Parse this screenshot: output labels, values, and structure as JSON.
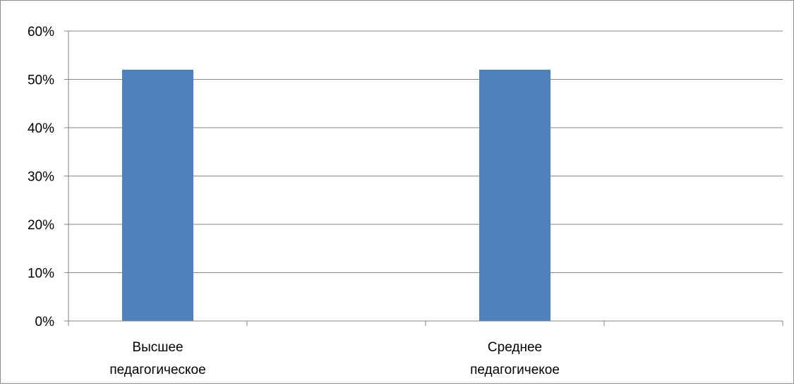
{
  "chart_data": {
    "type": "bar",
    "categories": [
      [
        "Высшее",
        "педагогическое"
      ],
      [
        "Среднее",
        "педагогичекое"
      ]
    ],
    "values": [
      52,
      52
    ],
    "ylim": [
      0,
      60
    ],
    "yticks": [
      "0%",
      "10%",
      "20%",
      "30%",
      "40%",
      "50%",
      "60%"
    ],
    "ytick_values": [
      0,
      10,
      20,
      30,
      40,
      50,
      60
    ],
    "grid": true,
    "legend": "none",
    "colors": {
      "bar": "#4f81bd",
      "grid": "#868686",
      "axis": "#868686"
    }
  }
}
